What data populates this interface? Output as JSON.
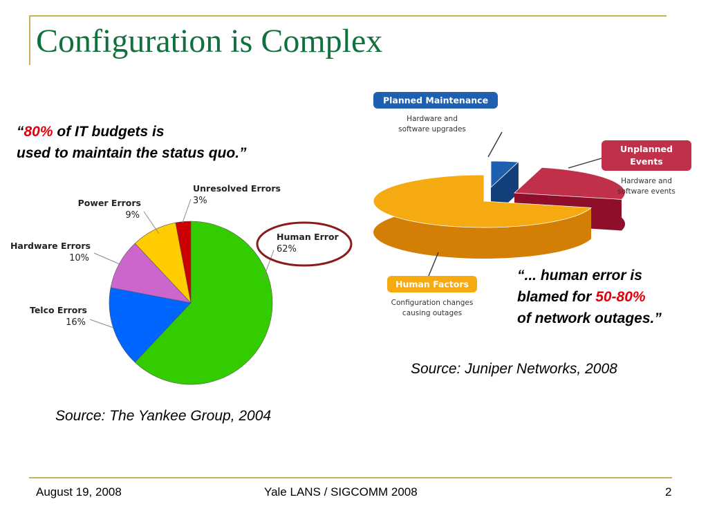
{
  "slide": {
    "title": "Configuration is Complex",
    "quote_left": {
      "open": "“",
      "highlight": "80%",
      "rest1": " of IT budgets is",
      "line2": "used to maintain the status quo.”"
    },
    "quote_right": {
      "line1": "“... human error is",
      "line2_prefix": "blamed for ",
      "highlight": "50-80%",
      "line3": "of network outages.”"
    },
    "source_left": "Source: The Yankee Group, 2004",
    "source_right": "Source: Juniper Networks, 2008",
    "footer": {
      "date": "August 19, 2008",
      "center": "Yale LANS / SIGCOMM 2008",
      "page": "2"
    },
    "colors": {
      "title": "#11703c",
      "accent": "#c9b15a",
      "highlight": "#e0000b"
    }
  },
  "chart_data": [
    {
      "type": "pie",
      "categories": [
        "Human Error",
        "Telco Errors",
        "Hardware Errors",
        "Power Errors",
        "Unresolved Errors"
      ],
      "values": [
        62,
        16,
        10,
        9,
        3
      ],
      "value_labels": [
        "62%",
        "16%",
        "10%",
        "9%",
        "3%"
      ],
      "colors": [
        "#33cc00",
        "#0066ff",
        "#cc66cc",
        "#ffcc00",
        "#cc0000"
      ],
      "annotation": "Human Error slice label circled"
    },
    {
      "type": "pie",
      "style": "3d-exploded",
      "categories": [
        "Human Factors",
        "Unplanned Events",
        "Planned Maintenance"
      ],
      "descriptions": [
        "Configuration changes causing outages",
        "Hardware and software events",
        "Hardware and software upgrades"
      ],
      "values": [
        71,
        25,
        4
      ],
      "colors": [
        "#f5aa11",
        "#c0304a",
        "#1f5fb0"
      ]
    }
  ]
}
